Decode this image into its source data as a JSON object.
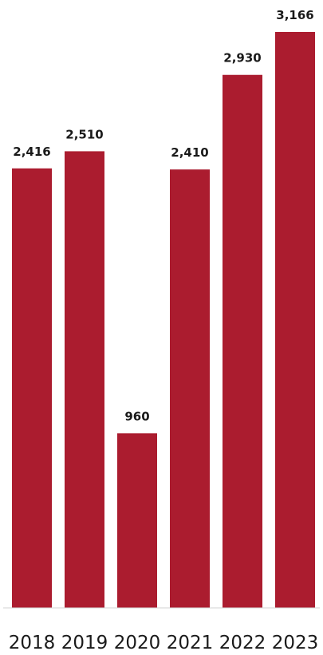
{
  "chart_data": {
    "type": "bar",
    "title": "",
    "xlabel": "",
    "ylabel": "",
    "categories": [
      "2018",
      "2019",
      "2020",
      "2021",
      "2022",
      "2023"
    ],
    "values": [
      2416,
      2510,
      960,
      2410,
      2930,
      3166
    ],
    "value_labels": [
      "2,416",
      "2,510",
      "960",
      "2,410",
      "2,930",
      "3,166"
    ],
    "ylim": [
      0,
      3166
    ],
    "grid": false,
    "legend": "none",
    "bar_color": "#ab1c2f"
  }
}
